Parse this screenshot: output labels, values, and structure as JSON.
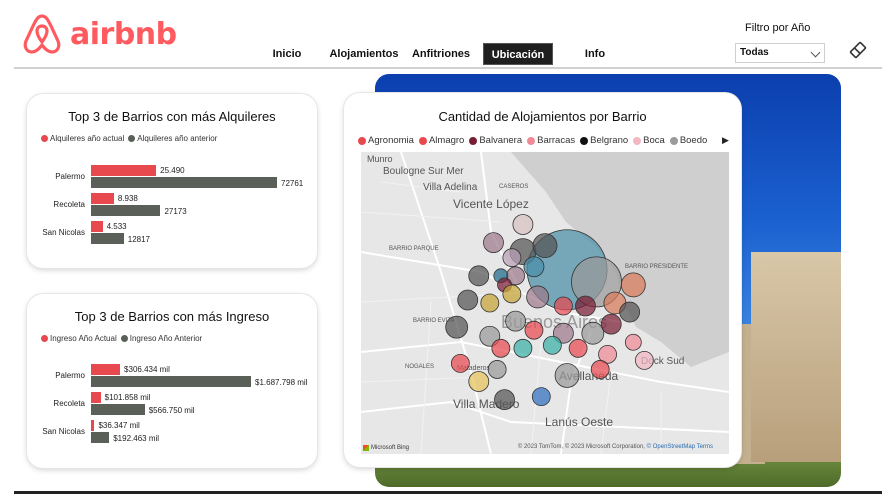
{
  "header": {
    "brand": "airbnb",
    "brand_color": "#ff5a5f",
    "nav": [
      {
        "label": "Inicio",
        "active": false
      },
      {
        "label": "Alojamientos",
        "active": false
      },
      {
        "label": "Anfitriones",
        "active": false
      },
      {
        "label": "Ubicación",
        "active": true
      },
      {
        "label": "Info",
        "active": false
      }
    ],
    "filter": {
      "label": "Filtro por Año",
      "value": "Todas"
    },
    "eraser_icon": "eraser-icon"
  },
  "rentals_card": {
    "title": "Top 3 de Barrios con más Alquileres",
    "legend": [
      {
        "label": "Alquileres año actual",
        "color": "#e8494f"
      },
      {
        "label": "Alquileres año anterior",
        "color": "#5a5f58"
      }
    ],
    "rows": [
      {
        "category": "Palermo",
        "current": 25490,
        "current_label": "25.490",
        "previous": 72761,
        "previous_label": "72761"
      },
      {
        "category": "Recoleta",
        "current": 8938,
        "current_label": "8.938",
        "previous": 27173,
        "previous_label": "27173"
      },
      {
        "category": "San Nicolas",
        "current": 4533,
        "current_label": "4.533",
        "previous": 12817,
        "previous_label": "12817"
      }
    ]
  },
  "income_card": {
    "title": "Top 3 de Barrios con más Ingreso",
    "legend": [
      {
        "label": "Ingreso Año Actual",
        "color": "#e8494f"
      },
      {
        "label": "Ingreso Año Anterior",
        "color": "#5a5f58"
      }
    ],
    "rows": [
      {
        "category": "Palermo",
        "current": 306434,
        "current_label": "$306.434 mil",
        "previous": 1687798,
        "previous_label": "$1.687.798 mil"
      },
      {
        "category": "Recoleta",
        "current": 101858,
        "current_label": "$101.858 mil",
        "previous": 566750,
        "previous_label": "$566.750 mil"
      },
      {
        "category": "San Nicolas",
        "current": 36347,
        "current_label": "$36.347 mil",
        "previous": 192463,
        "previous_label": "$192.463 mil"
      }
    ]
  },
  "map_card": {
    "title": "Cantidad de Alojamientos por Barrio",
    "legend": [
      {
        "label": "Agronomia",
        "color": "#e8494f"
      },
      {
        "label": "Almagro",
        "color": "#e8494f"
      },
      {
        "label": "Balvanera",
        "color": "#7a1e35"
      },
      {
        "label": "Barracas",
        "color": "#f08a96"
      },
      {
        "label": "Belgrano",
        "color": "#111111"
      },
      {
        "label": "Boca",
        "color": "#f3b7c2"
      },
      {
        "label": "Boedo",
        "color": "#9a9a9a"
      }
    ],
    "place_labels": [
      "Boulogne Sur Mer",
      "Villa Adelina",
      "Vicente López",
      "Buenos Aires",
      "Avellaneda",
      "Villa Madero",
      "Lanús Oeste",
      "Dock Sud",
      "Mataderos",
      "BARRIO PARQUE",
      "BARRIO EVITA",
      "NOGALES",
      "Munro",
      "CASEROS",
      "BARRIO PRESIDENTE"
    ],
    "attribution": "© 2023 TomTom, © 2023 Microsoft Corporation,",
    "attribution_link": "© OpenStreetMap",
    "attribution_terms": "Terms",
    "bing_label": "Microsoft Bing",
    "bubbles": [
      {
        "color": "#4a8fa8",
        "size": 40,
        "lng": 0.56,
        "lat": 0.39
      },
      {
        "color": "#9a9a9a",
        "size": 25,
        "lng": 0.64,
        "lat": 0.43
      },
      {
        "color": "#d97a5c",
        "size": 12,
        "lng": 0.74,
        "lat": 0.44
      },
      {
        "color": "#d9c2c2",
        "size": 10,
        "lng": 0.44,
        "lat": 0.24
      },
      {
        "color": "#9d7a8a",
        "size": 10,
        "lng": 0.36,
        "lat": 0.3
      },
      {
        "color": "#555555",
        "size": 13,
        "lng": 0.44,
        "lat": 0.33
      },
      {
        "color": "#555555",
        "size": 12,
        "lng": 0.5,
        "lat": 0.31
      },
      {
        "color": "#b9a0b5",
        "size": 9,
        "lng": 0.41,
        "lat": 0.35
      },
      {
        "color": "#4a8fa8",
        "size": 10,
        "lng": 0.47,
        "lat": 0.38
      },
      {
        "color": "#9d7a8a",
        "size": 9,
        "lng": 0.42,
        "lat": 0.41
      },
      {
        "color": "#555555",
        "size": 10,
        "lng": 0.32,
        "lat": 0.41
      },
      {
        "color": "#1e6a8a",
        "size": 7,
        "lng": 0.38,
        "lat": 0.41
      },
      {
        "color": "#7a1e35",
        "size": 7,
        "lng": 0.39,
        "lat": 0.44
      },
      {
        "color": "#c8a538",
        "size": 9,
        "lng": 0.41,
        "lat": 0.47
      },
      {
        "color": "#9d7a8a",
        "size": 11,
        "lng": 0.48,
        "lat": 0.48
      },
      {
        "color": "#e8494f",
        "size": 9,
        "lng": 0.55,
        "lat": 0.51
      },
      {
        "color": "#7a1e35",
        "size": 10,
        "lng": 0.61,
        "lat": 0.51
      },
      {
        "color": "#d97a5c",
        "size": 11,
        "lng": 0.69,
        "lat": 0.5
      },
      {
        "color": "#555555",
        "size": 10,
        "lng": 0.73,
        "lat": 0.53
      },
      {
        "color": "#555555",
        "size": 10,
        "lng": 0.29,
        "lat": 0.49
      },
      {
        "color": "#c8a538",
        "size": 9,
        "lng": 0.35,
        "lat": 0.5
      },
      {
        "color": "#9a9a9a",
        "size": 10,
        "lng": 0.42,
        "lat": 0.56
      },
      {
        "color": "#555555",
        "size": 11,
        "lng": 0.26,
        "lat": 0.58
      },
      {
        "color": "#9a9a9a",
        "size": 10,
        "lng": 0.35,
        "lat": 0.61
      },
      {
        "color": "#e8494f",
        "size": 9,
        "lng": 0.38,
        "lat": 0.65
      },
      {
        "color": "#e8494f",
        "size": 9,
        "lng": 0.47,
        "lat": 0.59
      },
      {
        "color": "#9d7a8a",
        "size": 10,
        "lng": 0.55,
        "lat": 0.6
      },
      {
        "color": "#9a9a9a",
        "size": 11,
        "lng": 0.63,
        "lat": 0.6
      },
      {
        "color": "#7a1e35",
        "size": 10,
        "lng": 0.68,
        "lat": 0.57
      },
      {
        "color": "#f08a96",
        "size": 8,
        "lng": 0.74,
        "lat": 0.63
      },
      {
        "color": "#3bb0a7",
        "size": 9,
        "lng": 0.44,
        "lat": 0.65
      },
      {
        "color": "#3bb0a7",
        "size": 9,
        "lng": 0.52,
        "lat": 0.64
      },
      {
        "color": "#e8494f",
        "size": 9,
        "lng": 0.59,
        "lat": 0.65
      },
      {
        "color": "#f08a96",
        "size": 9,
        "lng": 0.67,
        "lat": 0.67
      },
      {
        "color": "#f3b7c2",
        "size": 9,
        "lng": 0.77,
        "lat": 0.69
      },
      {
        "color": "#e8494f",
        "size": 9,
        "lng": 0.27,
        "lat": 0.7
      },
      {
        "color": "#9a9a9a",
        "size": 9,
        "lng": 0.37,
        "lat": 0.72
      },
      {
        "color": "#9a9a9a",
        "size": 12,
        "lng": 0.56,
        "lat": 0.74
      },
      {
        "color": "#e8494f",
        "size": 9,
        "lng": 0.65,
        "lat": 0.72
      },
      {
        "color": "#e8c45a",
        "size": 10,
        "lng": 0.32,
        "lat": 0.76
      },
      {
        "color": "#555555",
        "size": 10,
        "lng": 0.39,
        "lat": 0.82
      },
      {
        "color": "#2e6fc0",
        "size": 9,
        "lng": 0.49,
        "lat": 0.81
      }
    ]
  }
}
